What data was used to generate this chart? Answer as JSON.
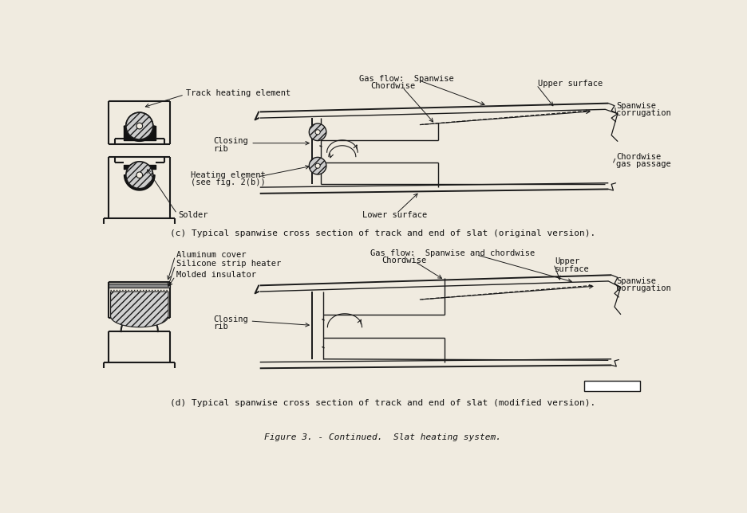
{
  "background_color": "#f0ebe0",
  "title": "Figure 3. - Continued.  Slat heating system.",
  "caption_c": "(c) Typical spanwise cross section of track and end of slat (original version).",
  "caption_d": "(d) Typical spanwise cross section of track and end of slat (modified version).",
  "line_color": "#1a1a1a",
  "text_color": "#111111",
  "hatch_color": "#555555"
}
